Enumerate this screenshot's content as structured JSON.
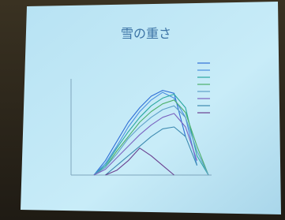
{
  "chart_data": {
    "type": "line",
    "title": "雪の重さ",
    "x": [
      0,
      1,
      2,
      3,
      4,
      5,
      6,
      7,
      8,
      9,
      10,
      11,
      12
    ],
    "xlim": [
      0,
      12
    ],
    "ylim": [
      0,
      100
    ],
    "series": [
      {
        "color": "#2f6fd6",
        "values": [
          null,
          null,
          0,
          15,
          35,
          55,
          70,
          82,
          88,
          85,
          40,
          null,
          null
        ]
      },
      {
        "color": "#4a8fe0",
        "values": [
          null,
          null,
          0,
          12,
          30,
          50,
          66,
          78,
          86,
          80,
          60,
          10,
          null
        ]
      },
      {
        "color": "#2aa7a0",
        "values": [
          null,
          null,
          0,
          10,
          28,
          45,
          60,
          72,
          80,
          84,
          70,
          20,
          0
        ]
      },
      {
        "color": "#4caf6a",
        "values": [
          null,
          null,
          0,
          8,
          25,
          40,
          55,
          66,
          74,
          78,
          65,
          30,
          0
        ]
      },
      {
        "color": "#5fa0c8",
        "values": [
          null,
          null,
          0,
          8,
          22,
          38,
          50,
          60,
          68,
          72,
          60,
          25,
          0
        ]
      },
      {
        "color": "#7a62c0",
        "values": [
          null,
          null,
          0,
          6,
          18,
          30,
          42,
          52,
          60,
          64,
          50,
          15,
          null
        ]
      },
      {
        "color": "#3d8ab0",
        "values": [
          null,
          null,
          null,
          0,
          10,
          20,
          30,
          40,
          48,
          50,
          40,
          10,
          null
        ]
      },
      {
        "color": "#6a3f8f",
        "values": [
          null,
          null,
          null,
          0,
          5,
          15,
          28,
          20,
          10,
          0,
          null,
          null,
          null
        ]
      }
    ]
  }
}
